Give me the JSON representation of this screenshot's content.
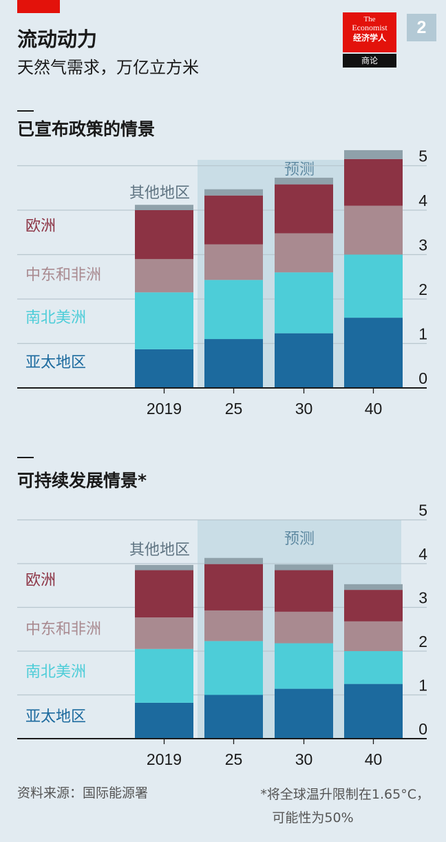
{
  "header": {
    "title": "流动动力",
    "subtitle": "天然气需求，万亿立方米",
    "badge_number": "2"
  },
  "logo": {
    "the": "The",
    "economist": "Economist",
    "cn": "经济学人",
    "sub": "商论"
  },
  "colors": {
    "background": "#e2ebf1",
    "forecast_band": "#c9dde6",
    "asia": "#1c6a9e",
    "americas": "#4dcdd8",
    "mideast_africa": "#a98a90",
    "europe": "#8c3344",
    "other": "#8fa1aa",
    "accent_red": "#e3120b"
  },
  "chart_data": [
    {
      "type": "bar",
      "stacked": true,
      "title": "已宣布政策的情景",
      "categories": [
        "2019",
        "25",
        "30",
        "40"
      ],
      "forecast_label": "预测",
      "forecast_from_index": 1,
      "ylim": [
        0,
        5
      ],
      "yticks": [
        "0",
        "1",
        "2",
        "3",
        "4",
        "5"
      ],
      "series": [
        {
          "name": "亚太地区",
          "color": "#1c6a9e",
          "values": [
            0.87,
            1.1,
            1.23,
            1.58
          ]
        },
        {
          "name": "南北美洲",
          "color": "#4dcdd8",
          "values": [
            1.28,
            1.33,
            1.37,
            1.42
          ]
        },
        {
          "name": "中东和非洲",
          "color": "#a98a90",
          "values": [
            0.75,
            0.8,
            0.88,
            1.1
          ]
        },
        {
          "name": "欧洲",
          "color": "#8c3344",
          "values": [
            1.1,
            1.1,
            1.1,
            1.05
          ]
        },
        {
          "name": "其他地区",
          "color": "#8fa1aa",
          "values": [
            0.12,
            0.14,
            0.15,
            0.2
          ]
        }
      ]
    },
    {
      "type": "bar",
      "stacked": true,
      "title": "可持续发展情景*",
      "categories": [
        "2019",
        "25",
        "30",
        "40"
      ],
      "forecast_label": "预测",
      "forecast_from_index": 1,
      "ylim": [
        0,
        5
      ],
      "yticks": [
        "0",
        "1",
        "2",
        "3",
        "4",
        "5"
      ],
      "series": [
        {
          "name": "亚太地区",
          "color": "#1c6a9e",
          "values": [
            0.82,
            1.0,
            1.14,
            1.25
          ]
        },
        {
          "name": "南北美洲",
          "color": "#4dcdd8",
          "values": [
            1.23,
            1.23,
            1.04,
            0.75
          ]
        },
        {
          "name": "中东和非洲",
          "color": "#a98a90",
          "values": [
            0.72,
            0.7,
            0.72,
            0.68
          ]
        },
        {
          "name": "欧洲",
          "color": "#8c3344",
          "values": [
            1.08,
            1.06,
            0.95,
            0.72
          ]
        },
        {
          "name": "其他地区",
          "color": "#8fa1aa",
          "values": [
            0.12,
            0.14,
            0.13,
            0.13
          ]
        }
      ]
    }
  ],
  "footer": {
    "source": "资料来源：国际能源署",
    "note_line1": "*将全球温升限制在1.65°C，",
    "note_line2": "可能性为50%"
  }
}
